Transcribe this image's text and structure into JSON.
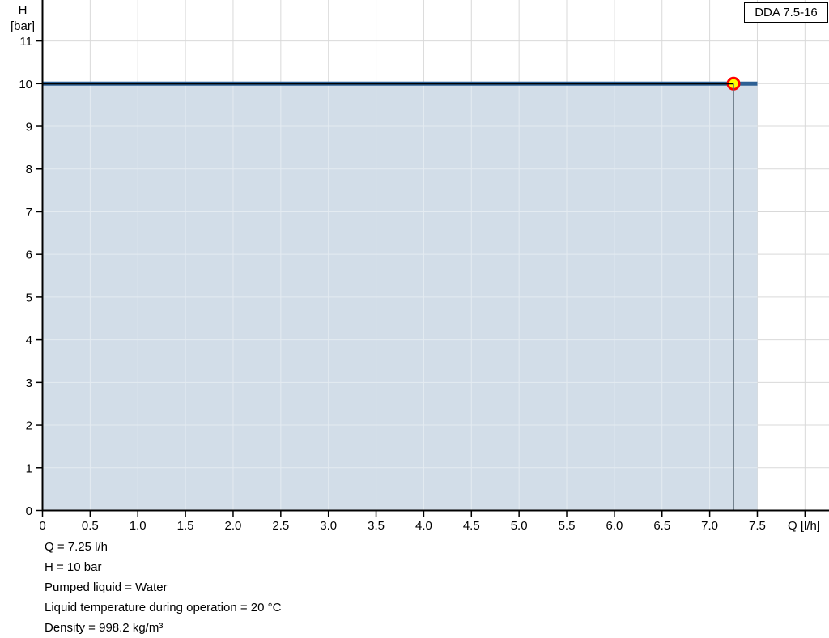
{
  "chart_data": {
    "type": "area",
    "title": "DDA 7.5-16",
    "xlabel": "Q [l/h]",
    "ylabel_line1": "H",
    "ylabel_line2": "[bar]",
    "x_ticks": [
      0,
      0.5,
      1.0,
      1.5,
      2.0,
      2.5,
      3.0,
      3.5,
      4.0,
      4.5,
      5.0,
      5.5,
      6.0,
      6.5,
      7.0,
      7.5
    ],
    "y_ticks": [
      0,
      1,
      2,
      3,
      4,
      5,
      6,
      7,
      8,
      9,
      10,
      11
    ],
    "xlim": [
      0,
      8.25
    ],
    "ylim": [
      0,
      11.95
    ],
    "grid": true,
    "legend": "none",
    "series": [
      {
        "name": "pump-curve",
        "x": [
          0,
          7.5
        ],
        "y": [
          10,
          10
        ],
        "color": "#2e6094",
        "width": 5
      },
      {
        "name": "operating-range-line",
        "x": [
          0,
          7.25
        ],
        "y": [
          10,
          10
        ],
        "color": "#000000",
        "width": 1.8
      }
    ],
    "area": {
      "x0": 0,
      "x1": 7.5,
      "y_top": 10,
      "color": "#d2dde8"
    },
    "duty_point": {
      "q": 7.25,
      "h": 10,
      "marker_fill": "#ffff00",
      "marker_stroke": "#ff0000",
      "drop_line_color": "#5c6b78"
    },
    "colors": {
      "grid": "#d9d9d9",
      "grid_in_area": "#e4ebf1",
      "axis": "#000000"
    }
  },
  "info_lines": [
    "Q = 7.25 l/h",
    "H = 10 bar",
    "Pumped liquid = Water",
    "Liquid temperature during operation = 20 °C",
    "Density = 998.2 kg/m³"
  ]
}
